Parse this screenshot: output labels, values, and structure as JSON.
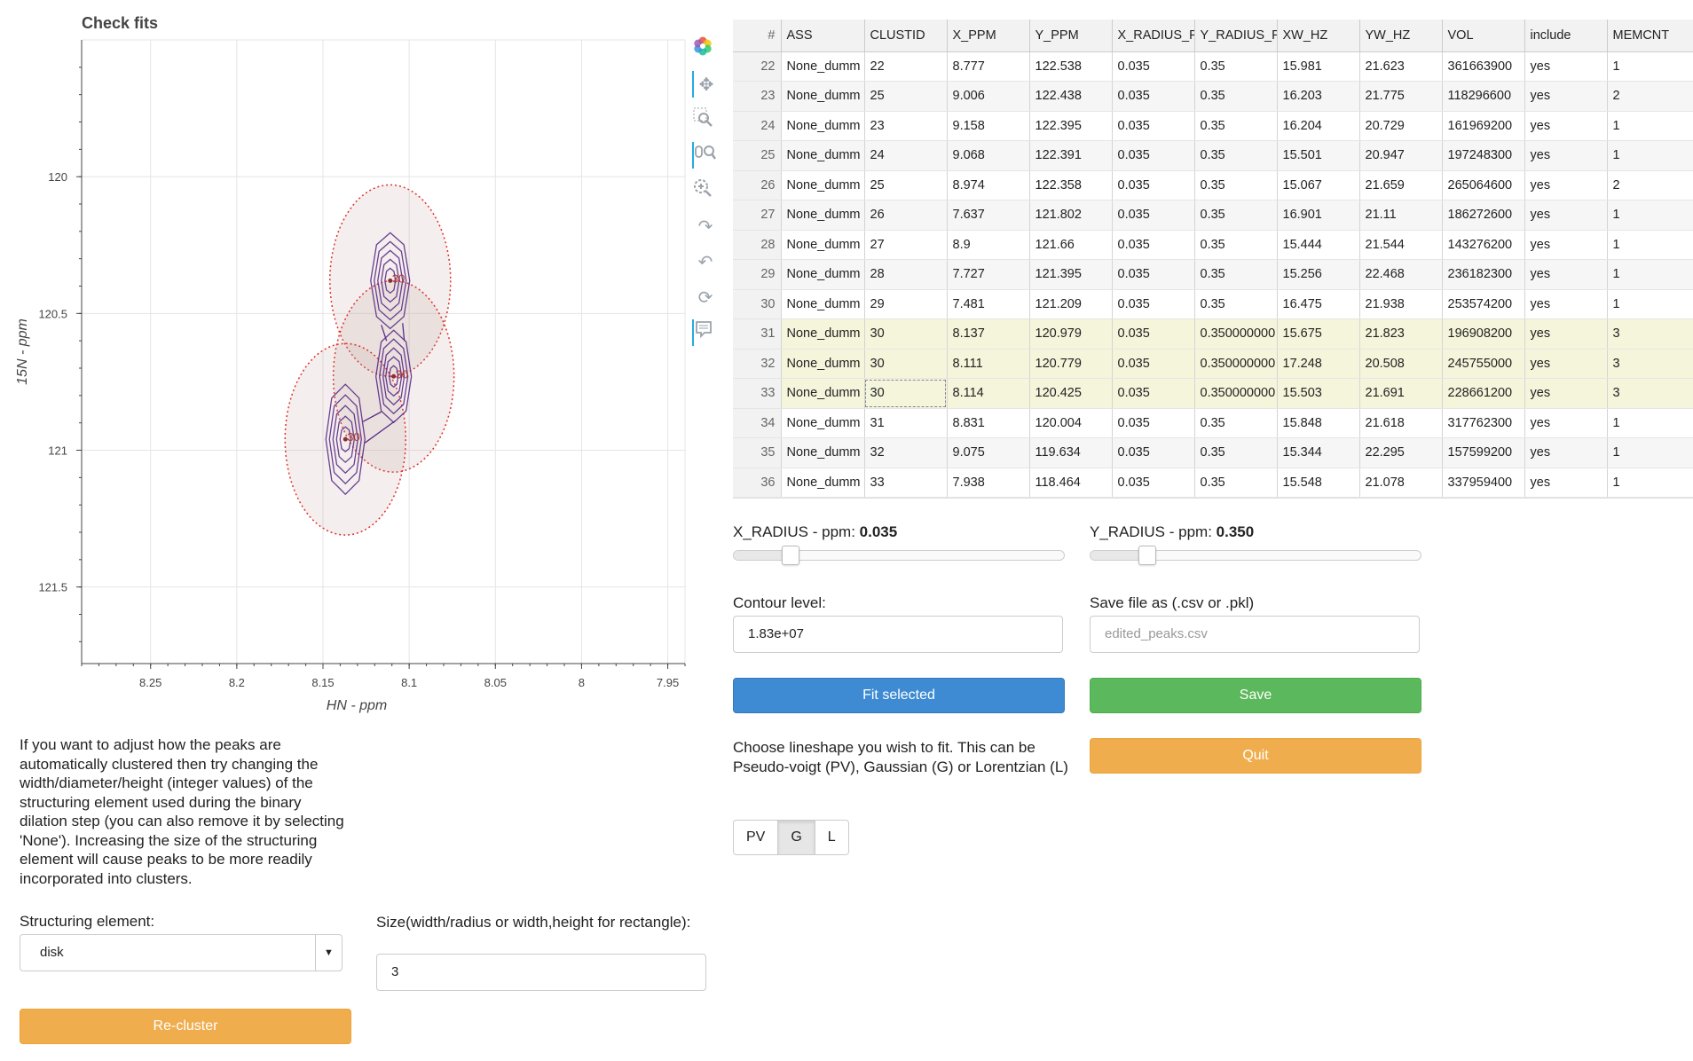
{
  "plot": {
    "title": "Check fits",
    "xlabel": "HN - ppm",
    "ylabel": "15N - ppm",
    "xticks": [
      "8.25",
      "8.2",
      "8.15",
      "8.1",
      "8.05",
      "8",
      "7.95"
    ],
    "yticks": [
      "120",
      "120.5",
      "121",
      "121.5"
    ],
    "peak_labels": [
      "30",
      "30",
      "30"
    ]
  },
  "chart_data": {
    "type": "scatter",
    "title": "Check fits",
    "xlabel": "HN - ppm",
    "ylabel": "15N - ppm",
    "xlim": [
      8.29,
      7.94
    ],
    "ylim": [
      121.78,
      119.5
    ],
    "peaks": [
      {
        "x": 8.111,
        "y": 120.38,
        "label": "30"
      },
      {
        "x": 8.109,
        "y": 120.73,
        "label": "30"
      },
      {
        "x": 8.137,
        "y": 120.96,
        "label": "30"
      }
    ]
  },
  "toolbar": {
    "icons": [
      "bokeh-logo-icon",
      "pan-icon",
      "box-zoom-icon",
      "wheel-zoom-icon",
      "zoom-in-icon",
      "redo-icon",
      "undo-icon",
      "reset-icon",
      "hover-icon"
    ]
  },
  "table": {
    "columns": [
      "#",
      "ASS",
      "CLUSTID",
      "X_PPM",
      "Y_PPM",
      "X_RADIUS_P",
      "Y_RADIUS_P",
      "XW_HZ",
      "YW_HZ",
      "VOL",
      "include",
      "MEMCNT"
    ],
    "rows": [
      [
        "22",
        "None_dumm",
        "22",
        "8.777",
        "122.538",
        "0.035",
        "0.35",
        "15.981",
        "21.623",
        "361663900",
        "yes",
        "1"
      ],
      [
        "23",
        "None_dumm",
        "25",
        "9.006",
        "122.438",
        "0.035",
        "0.35",
        "16.203",
        "21.775",
        "118296600",
        "yes",
        "2"
      ],
      [
        "24",
        "None_dumm",
        "23",
        "9.158",
        "122.395",
        "0.035",
        "0.35",
        "16.204",
        "20.729",
        "161969200",
        "yes",
        "1"
      ],
      [
        "25",
        "None_dumm",
        "24",
        "9.068",
        "122.391",
        "0.035",
        "0.35",
        "15.501",
        "20.947",
        "197248300",
        "yes",
        "1"
      ],
      [
        "26",
        "None_dumm",
        "25",
        "8.974",
        "122.358",
        "0.035",
        "0.35",
        "15.067",
        "21.659",
        "265064600",
        "yes",
        "2"
      ],
      [
        "27",
        "None_dumm",
        "26",
        "7.637",
        "121.802",
        "0.035",
        "0.35",
        "16.901",
        "21.11",
        "186272600",
        "yes",
        "1"
      ],
      [
        "28",
        "None_dumm",
        "27",
        "8.9",
        "121.66",
        "0.035",
        "0.35",
        "15.444",
        "21.544",
        "143276200",
        "yes",
        "1"
      ],
      [
        "29",
        "None_dumm",
        "28",
        "7.727",
        "121.395",
        "0.035",
        "0.35",
        "15.256",
        "22.468",
        "236182300",
        "yes",
        "1"
      ],
      [
        "30",
        "None_dumm",
        "29",
        "7.481",
        "121.209",
        "0.035",
        "0.35",
        "16.475",
        "21.938",
        "253574200",
        "yes",
        "1"
      ],
      [
        "31",
        "None_dumm",
        "30",
        "8.137",
        "120.979",
        "0.035",
        "0.350000000",
        "15.675",
        "21.823",
        "196908200",
        "yes",
        "3"
      ],
      [
        "32",
        "None_dumm",
        "30",
        "8.111",
        "120.779",
        "0.035",
        "0.350000000",
        "17.248",
        "20.508",
        "245755000",
        "yes",
        "3"
      ],
      [
        "33",
        "None_dumm",
        "30",
        "8.114",
        "120.425",
        "0.035",
        "0.350000000",
        "15.503",
        "21.691",
        "228661200",
        "yes",
        "3"
      ],
      [
        "34",
        "None_dumm",
        "31",
        "8.831",
        "120.004",
        "0.035",
        "0.35",
        "15.848",
        "21.618",
        "317762300",
        "yes",
        "1"
      ],
      [
        "35",
        "None_dumm",
        "32",
        "9.075",
        "119.634",
        "0.035",
        "0.35",
        "15.344",
        "22.295",
        "157599200",
        "yes",
        "1"
      ],
      [
        "36",
        "None_dumm",
        "33",
        "7.938",
        "118.464",
        "0.035",
        "0.35",
        "15.548",
        "21.078",
        "337959400",
        "yes",
        "1"
      ]
    ],
    "selected_rows": [
      9,
      10,
      11
    ]
  },
  "controls": {
    "x_radius_label": "X_RADIUS - ppm:",
    "x_radius_value": "0.035",
    "x_radius_fraction": 0.17,
    "y_radius_label": "Y_RADIUS - ppm:",
    "y_radius_value": "0.350",
    "y_radius_fraction": 0.17,
    "contour_label": "Contour level:",
    "contour_value": "1.83e+07",
    "save_label": "Save file as (.csv or .pkl)",
    "save_placeholder": "edited_peaks.csv",
    "fit_button": "Fit selected",
    "save_button": "Save",
    "quit_button": "Quit",
    "lineshape_text": "Choose lineshape you wish to fit. This can be Pseudo-voigt (PV), Gaussian (G) or Lorentzian (L)",
    "lineshape_options": [
      "PV",
      "G",
      "L"
    ],
    "lineshape_selected": "G",
    "cluster_text": "If you want to adjust how the peaks are automatically clustered then try changing the width/diameter/height (integer values) of the structuring element used during the binary dilation step (you can also remove it by selecting 'None'). Increasing the size of the structuring element will cause peaks to be more readily incorporated into clusters.",
    "struct_label": "Structuring element:",
    "struct_value": "disk",
    "size_label": "Size(width/radius or width,height for rectangle):",
    "size_value": "3",
    "recluster_button": "Re-cluster"
  },
  "colors": {
    "contour": "#5b2a86",
    "ellipse": "#e0302a",
    "fit_blue": "#3e8bd3",
    "save_green": "#5cb85c",
    "quit_orange": "#f0ad4e"
  }
}
